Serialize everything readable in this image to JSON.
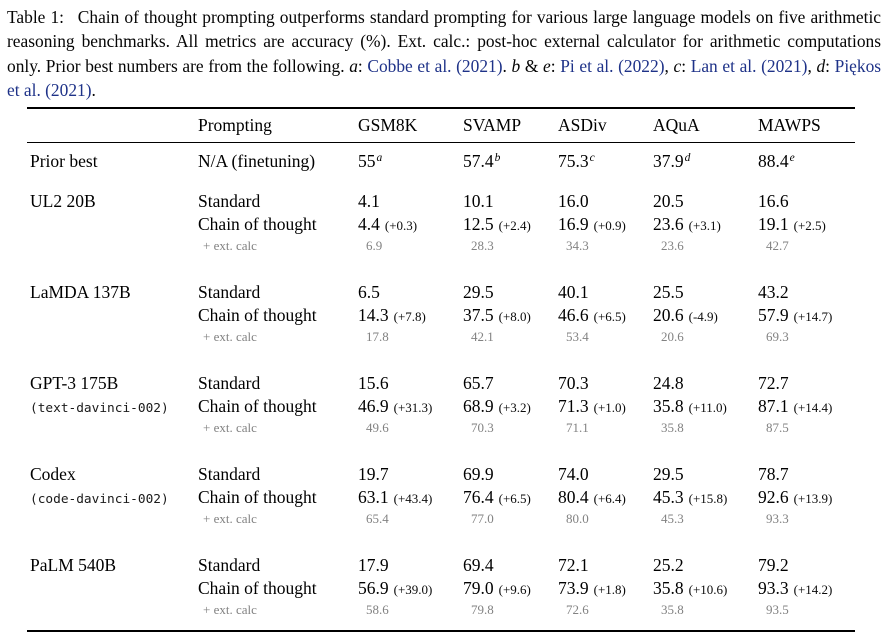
{
  "colors": {
    "citation_blue": "#1e3288",
    "ext_calc_gray": "#828282",
    "rule_black": "#000000"
  },
  "caption": {
    "segments": [
      {
        "t": "Table 1:  Chain of thought prompting outperforms standard prompting for various large language models on five arithmetic reasoning benchmarks. All metrics are accuracy (%). Ext. calc.: post-hoc external calculator for arithmetic computations only. Prior best numbers are from the following. ",
        "s": "n"
      },
      {
        "t": "a",
        "s": "i"
      },
      {
        "t": ": ",
        "s": "n"
      },
      {
        "t": "Cobbe et al. (2021)",
        "s": "l"
      },
      {
        "t": ". ",
        "s": "n"
      },
      {
        "t": "b",
        "s": "i"
      },
      {
        "t": " & ",
        "s": "n"
      },
      {
        "t": "e",
        "s": "i"
      },
      {
        "t": ": ",
        "s": "n"
      },
      {
        "t": "Pi et al. (2022)",
        "s": "l"
      },
      {
        "t": ", ",
        "s": "n"
      },
      {
        "t": "c",
        "s": "i"
      },
      {
        "t": ": ",
        "s": "n"
      },
      {
        "t": "Lan et al. (2021)",
        "s": "l"
      },
      {
        "t": ", ",
        "s": "n"
      },
      {
        "t": "d",
        "s": "i"
      },
      {
        "t": ": ",
        "s": "n"
      },
      {
        "t": "Piękos et al. (2021)",
        "s": "l"
      },
      {
        "t": ".",
        "s": "n"
      }
    ]
  },
  "table": {
    "columns": [
      "",
      "Prompting",
      "GSM8K",
      "SVAMP",
      "ASDiv",
      "AQuA",
      "MAWPS"
    ],
    "row_labels": {
      "standard": "Standard",
      "cot": "Chain of thought",
      "ext": "+ ext. calc"
    },
    "prior_best": {
      "model": "Prior best",
      "prompting": "N/A (finetuning)",
      "values": [
        "55",
        "57.4",
        "75.3",
        "37.9",
        "88.4"
      ],
      "superscripts": [
        "a",
        "b",
        "c",
        "d",
        "e"
      ]
    },
    "groups": [
      {
        "model": "UL2 20B",
        "model_code": "",
        "standard": [
          "4.1",
          "10.1",
          "16.0",
          "20.5",
          "16.6"
        ],
        "cot": [
          "4.4",
          "12.5",
          "16.9",
          "23.6",
          "19.1"
        ],
        "cot_deltas": [
          "(+0.3)",
          "(+2.4)",
          "(+0.9)",
          "(+3.1)",
          "(+2.5)"
        ],
        "ext_calc": [
          "6.9",
          "28.3",
          "34.3",
          "23.6",
          "42.7"
        ]
      },
      {
        "model": "LaMDA 137B",
        "model_code": "",
        "standard": [
          "6.5",
          "29.5",
          "40.1",
          "25.5",
          "43.2"
        ],
        "cot": [
          "14.3",
          "37.5",
          "46.6",
          "20.6",
          "57.9"
        ],
        "cot_deltas": [
          "(+7.8)",
          "(+8.0)",
          "(+6.5)",
          "(-4.9)",
          "(+14.7)"
        ],
        "ext_calc": [
          "17.8",
          "42.1",
          "53.4",
          "20.6",
          "69.3"
        ]
      },
      {
        "model": "GPT-3 175B",
        "model_code": "(text-davinci-002)",
        "standard": [
          "15.6",
          "65.7",
          "70.3",
          "24.8",
          "72.7"
        ],
        "cot": [
          "46.9",
          "68.9",
          "71.3",
          "35.8",
          "87.1"
        ],
        "cot_deltas": [
          "(+31.3)",
          "(+3.2)",
          "(+1.0)",
          "(+11.0)",
          "(+14.4)"
        ],
        "ext_calc": [
          "49.6",
          "70.3",
          "71.1",
          "35.8",
          "87.5"
        ]
      },
      {
        "model": "Codex",
        "model_code": "(code-davinci-002)",
        "standard": [
          "19.7",
          "69.9",
          "74.0",
          "29.5",
          "78.7"
        ],
        "cot": [
          "63.1",
          "76.4",
          "80.4",
          "45.3",
          "92.6"
        ],
        "cot_deltas": [
          "(+43.4)",
          "(+6.5)",
          "(+6.4)",
          "(+15.8)",
          "(+13.9)"
        ],
        "ext_calc": [
          "65.4",
          "77.0",
          "80.0",
          "45.3",
          "93.3"
        ]
      },
      {
        "model": "PaLM 540B",
        "model_code": "",
        "standard": [
          "17.9",
          "69.4",
          "72.1",
          "25.2",
          "79.2"
        ],
        "cot": [
          "56.9",
          "79.0",
          "73.9",
          "35.8",
          "93.3"
        ],
        "cot_deltas": [
          "(+39.0)",
          "(+9.6)",
          "(+1.8)",
          "(+10.6)",
          "(+14.2)"
        ],
        "ext_calc": [
          "58.6",
          "79.8",
          "72.6",
          "35.8",
          "93.5"
        ]
      }
    ]
  }
}
